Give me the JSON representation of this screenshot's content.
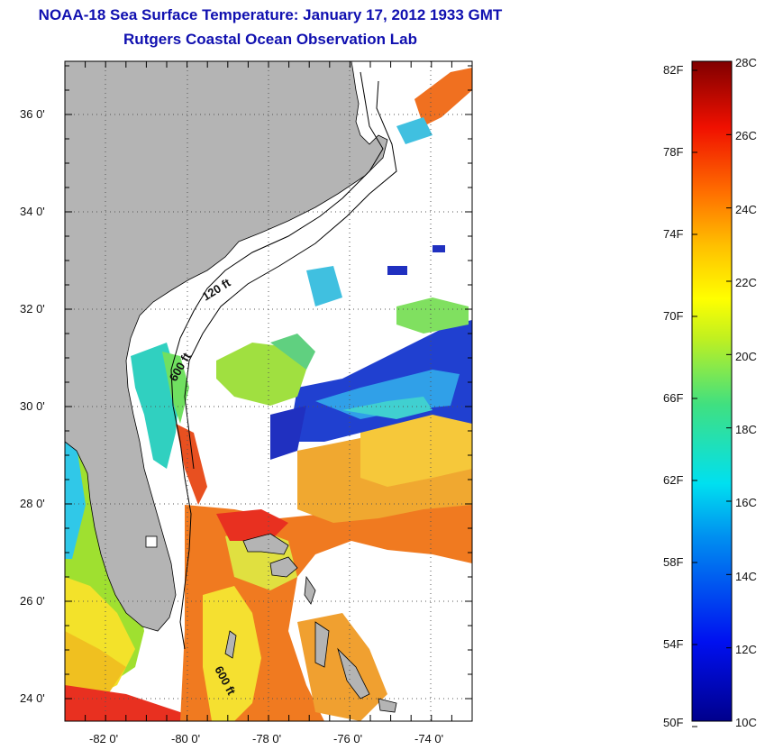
{
  "header": {
    "title": "NOAA-18 Sea Surface Temperature:  January 17, 2012 1933 GMT",
    "subtitle": "Rutgers Coastal Ocean Observation Lab"
  },
  "map": {
    "lon_ticks": [
      "-82 0'",
      "-80 0'",
      "-78 0'",
      "-76 0'",
      "-74 0'"
    ],
    "lat_ticks": [
      "36 0'",
      "34 0'",
      "32 0'",
      "30 0'",
      "28 0'",
      "26 0'",
      "24 0'"
    ],
    "lon_range": [
      -83,
      -73
    ],
    "lat_range": [
      23,
      37
    ],
    "contour_labels": [
      "120 ft",
      "600 ft",
      "600 ft"
    ],
    "colors": {
      "land": "#b4b4b4",
      "cloud": "#ffffff"
    }
  },
  "colorbar": {
    "f_labels": [
      "82F",
      "78F",
      "74F",
      "70F",
      "66F",
      "62F",
      "58F",
      "54F",
      "50F"
    ],
    "c_labels": [
      "28C",
      "26C",
      "24C",
      "22C",
      "20C",
      "18C",
      "16C",
      "14C",
      "12C",
      "10C"
    ],
    "range_c": [
      10,
      28
    ]
  }
}
